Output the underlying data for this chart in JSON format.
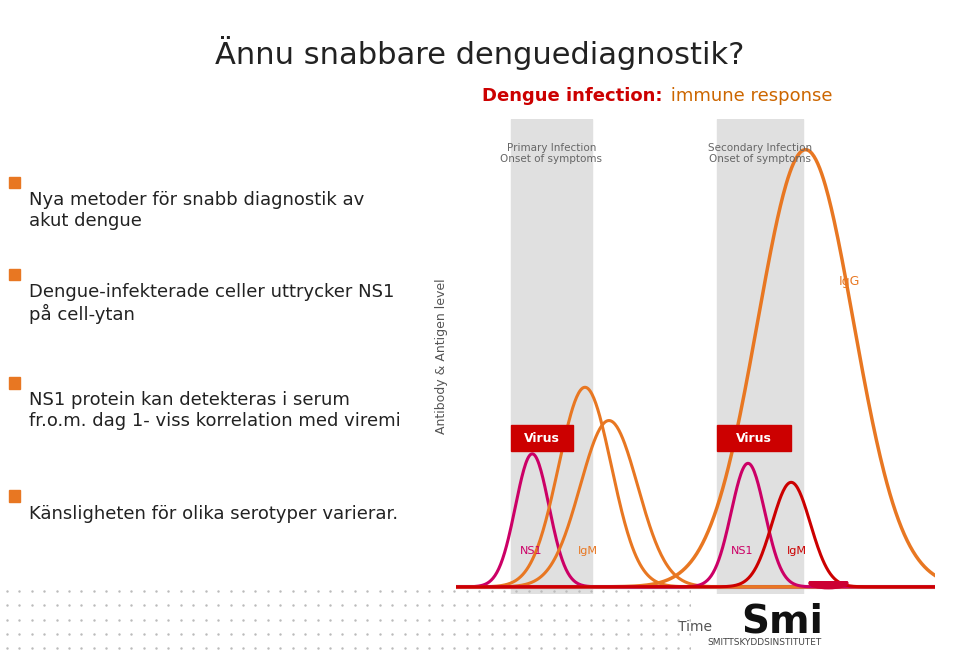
{
  "title": "Ännu snabbare denguediagnostik?",
  "title_fontsize": 22,
  "title_color": "#222222",
  "bg_color": "#ffffff",
  "bullet_color": "#E87722",
  "bullet_items": [
    "Nya metoder för snabb diagnostik av\nakut dengue",
    "Dengue-infekterade celler uttrycker NS1\npå cell-ytan",
    "NS1 protein kan detekteras i serum\nfr.o.m. dag 1- viss korrelation med viremi",
    "Känsligheten för olika serotyper varierar."
  ],
  "bullet_fontsize": 13,
  "chart_title_bold": "Dengue infection:",
  "chart_title_normal": " immune response",
  "chart_title_color_bold": "#cc0000",
  "chart_title_color_normal": "#cc6600",
  "ylabel": "Antibody & Antigen level",
  "xlabel": "Time",
  "primary_label": "Primary Infection\nOnset of symptoms",
  "secondary_label": "Secondary Infection\nOnset of symptoms",
  "virus_color": "#cc0000",
  "IgG_color": "#E87722",
  "IgM_primary_color": "#E87722",
  "IgM_secondary_color": "#cc0000",
  "NS1_primary_color": "#cc0066",
  "NS1_secondary_color": "#cc0066",
  "shade_color": "#e0e0e0",
  "baseline_color": "#aaaaaa",
  "footer_bg": "#e8e8e8",
  "smi_dot_color": "#cc0033"
}
